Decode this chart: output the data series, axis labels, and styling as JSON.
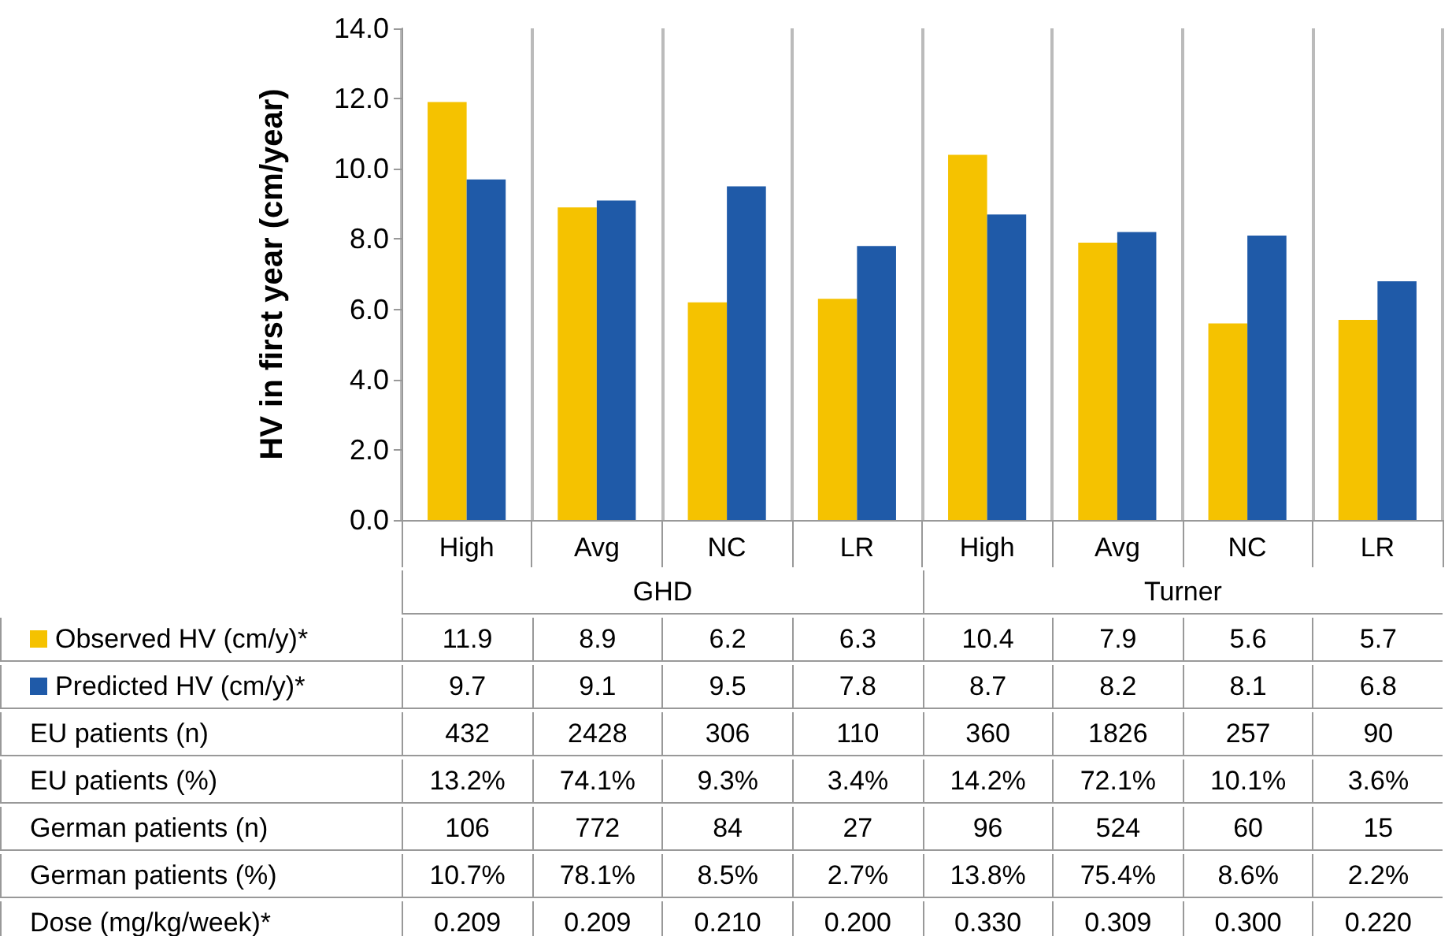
{
  "chart_data": {
    "type": "bar",
    "ylabel": "HV in first year (cm/year)",
    "categories": [
      "High",
      "Avg",
      "NC",
      "LR",
      "High",
      "Avg",
      "NC",
      "LR"
    ],
    "series": [
      {
        "name": "Observed HV (cm/y)*",
        "color": "#f5c200",
        "values": [
          11.9,
          8.9,
          6.2,
          6.3,
          10.4,
          7.9,
          5.6,
          5.7
        ]
      },
      {
        "name": "Predicted HV (cm/y)*",
        "color": "#1f5aa8",
        "values": [
          9.7,
          9.1,
          9.5,
          7.8,
          8.7,
          8.2,
          8.1,
          6.8
        ]
      }
    ],
    "ylim": [
      0,
      14
    ],
    "yticks": [
      {
        "value": 0,
        "label": "0.0"
      },
      {
        "value": 2,
        "label": "2.0"
      },
      {
        "value": 4,
        "label": "4.0"
      },
      {
        "value": 6,
        "label": "6.0"
      },
      {
        "value": 8,
        "label": "8.0"
      },
      {
        "value": 10,
        "label": "10.0"
      },
      {
        "value": 12,
        "label": "12.0"
      },
      {
        "value": 14,
        "label": "14.0"
      }
    ],
    "grid": "x",
    "legend": "bottom",
    "data_labels": true,
    "annotations": [
      "GHD",
      "Turner",
      "EU patients (n)",
      "432",
      "2428",
      "306",
      "110",
      "360",
      "1826",
      "257",
      "90",
      "EU patients (%)",
      "13.2%",
      "74.1%",
      "9.3%",
      "3.4%",
      "14.2%",
      "72.1%",
      "10.1%",
      "3.6%",
      "German patients (n)",
      "106",
      "772",
      "84",
      "27",
      "96",
      "524",
      "60",
      "15",
      "German patients (%)",
      "10.7%",
      "78.1%",
      "8.5%",
      "2.7%",
      "13.8%",
      "75.4%",
      "8.6%",
      "2.2%",
      "Dose (mg/kg/week)*",
      "0.209",
      "0.209",
      "0.210",
      "0.200",
      "0.330",
      "0.309",
      "0.300",
      "0.220"
    ]
  }
}
